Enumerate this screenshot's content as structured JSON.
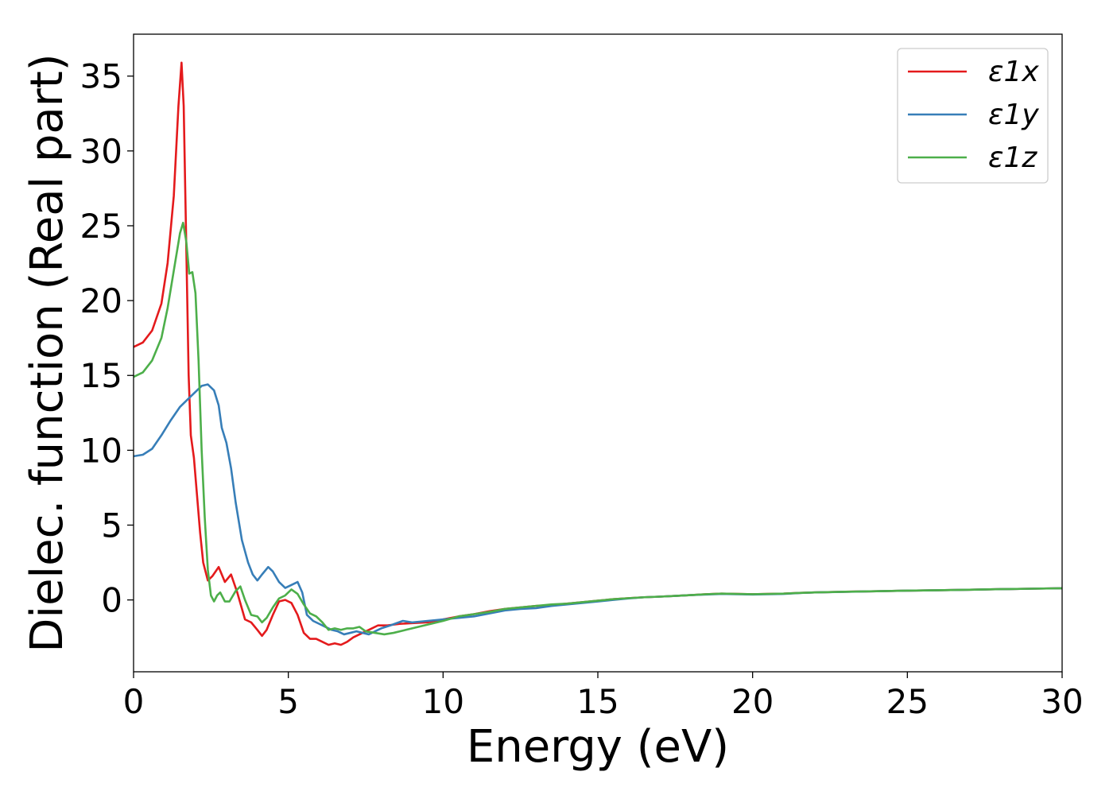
{
  "chart_data": {
    "type": "line",
    "title": "",
    "xlabel": "Energy (eV)",
    "ylabel": "Dielec. function (Real part)",
    "xlim": [
      0,
      30
    ],
    "ylim": [
      -4.8,
      37.8
    ],
    "xticks": [
      0,
      5,
      10,
      15,
      20,
      25,
      30
    ],
    "yticks": [
      0,
      5,
      10,
      15,
      20,
      25,
      30,
      35
    ],
    "grid": false,
    "legend_position": "top-right",
    "series": [
      {
        "name": "ε1x",
        "color": "#e41a1c",
        "points": [
          [
            0,
            16.9
          ],
          [
            0.3,
            17.2
          ],
          [
            0.6,
            18.0
          ],
          [
            0.9,
            19.8
          ],
          [
            1.1,
            22.5
          ],
          [
            1.3,
            27.0
          ],
          [
            1.45,
            33.0
          ],
          [
            1.55,
            35.9
          ],
          [
            1.62,
            33.0
          ],
          [
            1.7,
            24.0
          ],
          [
            1.78,
            15.0
          ],
          [
            1.85,
            11.0
          ],
          [
            1.95,
            9.5
          ],
          [
            2.05,
            7.0
          ],
          [
            2.15,
            4.5
          ],
          [
            2.25,
            2.5
          ],
          [
            2.4,
            1.3
          ],
          [
            2.55,
            1.6
          ],
          [
            2.75,
            2.2
          ],
          [
            2.95,
            1.2
          ],
          [
            3.15,
            1.7
          ],
          [
            3.35,
            0.5
          ],
          [
            3.6,
            -1.3
          ],
          [
            3.8,
            -1.5
          ],
          [
            4.0,
            -2.0
          ],
          [
            4.15,
            -2.4
          ],
          [
            4.3,
            -2.0
          ],
          [
            4.5,
            -1.0
          ],
          [
            4.7,
            -0.1
          ],
          [
            4.9,
            0.0
          ],
          [
            5.1,
            -0.2
          ],
          [
            5.3,
            -1.0
          ],
          [
            5.5,
            -2.2
          ],
          [
            5.7,
            -2.6
          ],
          [
            5.9,
            -2.6
          ],
          [
            6.1,
            -2.8
          ],
          [
            6.3,
            -3.0
          ],
          [
            6.5,
            -2.9
          ],
          [
            6.7,
            -3.0
          ],
          [
            6.9,
            -2.8
          ],
          [
            7.1,
            -2.5
          ],
          [
            7.3,
            -2.3
          ],
          [
            7.6,
            -2.0
          ],
          [
            7.9,
            -1.7
          ],
          [
            8.2,
            -1.7
          ],
          [
            8.6,
            -1.6
          ],
          [
            9.0,
            -1.55
          ],
          [
            9.5,
            -1.5
          ],
          [
            10.0,
            -1.3
          ],
          [
            10.5,
            -1.1
          ],
          [
            11.0,
            -0.95
          ],
          [
            11.5,
            -0.75
          ],
          [
            12.0,
            -0.6
          ],
          [
            12.5,
            -0.5
          ],
          [
            13.0,
            -0.4
          ],
          [
            13.5,
            -0.35
          ],
          [
            14.0,
            -0.25
          ],
          [
            14.5,
            -0.15
          ],
          [
            15.0,
            -0.05
          ],
          [
            15.5,
            0.05
          ],
          [
            16.0,
            0.12
          ],
          [
            16.5,
            0.18
          ],
          [
            17.0,
            0.22
          ],
          [
            17.5,
            0.27
          ],
          [
            18.0,
            0.32
          ],
          [
            18.5,
            0.38
          ],
          [
            19.0,
            0.42
          ],
          [
            19.5,
            0.4
          ],
          [
            20.0,
            0.38
          ],
          [
            20.5,
            0.4
          ],
          [
            21.0,
            0.42
          ],
          [
            21.5,
            0.47
          ],
          [
            22.0,
            0.5
          ],
          [
            23.0,
            0.55
          ],
          [
            24.0,
            0.58
          ],
          [
            25.0,
            0.62
          ],
          [
            26.0,
            0.65
          ],
          [
            27.0,
            0.68
          ],
          [
            28.0,
            0.72
          ],
          [
            29.0,
            0.75
          ],
          [
            30.0,
            0.78
          ]
        ]
      },
      {
        "name": "ε1y",
        "color": "#377eb8",
        "points": [
          [
            0,
            9.6
          ],
          [
            0.3,
            9.7
          ],
          [
            0.6,
            10.1
          ],
          [
            0.9,
            11.0
          ],
          [
            1.2,
            12.0
          ],
          [
            1.5,
            12.9
          ],
          [
            1.8,
            13.5
          ],
          [
            2.0,
            13.9
          ],
          [
            2.2,
            14.3
          ],
          [
            2.4,
            14.4
          ],
          [
            2.6,
            14.0
          ],
          [
            2.75,
            13.0
          ],
          [
            2.85,
            11.5
          ],
          [
            3.0,
            10.5
          ],
          [
            3.15,
            8.8
          ],
          [
            3.3,
            6.5
          ],
          [
            3.5,
            4.0
          ],
          [
            3.7,
            2.5
          ],
          [
            3.85,
            1.7
          ],
          [
            4.0,
            1.3
          ],
          [
            4.15,
            1.7
          ],
          [
            4.35,
            2.2
          ],
          [
            4.5,
            1.9
          ],
          [
            4.7,
            1.2
          ],
          [
            4.9,
            0.8
          ],
          [
            5.1,
            1.0
          ],
          [
            5.3,
            1.2
          ],
          [
            5.45,
            0.5
          ],
          [
            5.6,
            -1.0
          ],
          [
            5.8,
            -1.4
          ],
          [
            6.0,
            -1.6
          ],
          [
            6.2,
            -1.8
          ],
          [
            6.4,
            -2.0
          ],
          [
            6.6,
            -2.1
          ],
          [
            6.8,
            -2.3
          ],
          [
            7.0,
            -2.2
          ],
          [
            7.2,
            -2.1
          ],
          [
            7.4,
            -2.2
          ],
          [
            7.6,
            -2.3
          ],
          [
            7.8,
            -2.1
          ],
          [
            8.0,
            -1.9
          ],
          [
            8.3,
            -1.7
          ],
          [
            8.7,
            -1.4
          ],
          [
            9.0,
            -1.5
          ],
          [
            9.5,
            -1.4
          ],
          [
            10.0,
            -1.3
          ],
          [
            10.5,
            -1.2
          ],
          [
            11.0,
            -1.1
          ],
          [
            11.5,
            -0.9
          ],
          [
            12.0,
            -0.7
          ],
          [
            12.5,
            -0.6
          ],
          [
            13.0,
            -0.55
          ],
          [
            13.5,
            -0.4
          ],
          [
            14.0,
            -0.3
          ],
          [
            14.5,
            -0.2
          ],
          [
            15.0,
            -0.1
          ],
          [
            15.5,
            0.0
          ],
          [
            16.0,
            0.1
          ],
          [
            16.5,
            0.18
          ],
          [
            17.0,
            0.22
          ],
          [
            17.5,
            0.27
          ],
          [
            18.0,
            0.32
          ],
          [
            18.5,
            0.36
          ],
          [
            19.0,
            0.4
          ],
          [
            19.5,
            0.38
          ],
          [
            20.0,
            0.36
          ],
          [
            20.5,
            0.38
          ],
          [
            21.0,
            0.4
          ],
          [
            21.5,
            0.46
          ],
          [
            22.0,
            0.5
          ],
          [
            23.0,
            0.54
          ],
          [
            24.0,
            0.58
          ],
          [
            25.0,
            0.62
          ],
          [
            26.0,
            0.65
          ],
          [
            27.0,
            0.68
          ],
          [
            28.0,
            0.72
          ],
          [
            29.0,
            0.75
          ],
          [
            30.0,
            0.78
          ]
        ]
      },
      {
        "name": "ε1z",
        "color": "#4daf4a",
        "points": [
          [
            0,
            14.9
          ],
          [
            0.3,
            15.2
          ],
          [
            0.6,
            16.0
          ],
          [
            0.9,
            17.5
          ],
          [
            1.1,
            19.5
          ],
          [
            1.3,
            22.0
          ],
          [
            1.5,
            24.5
          ],
          [
            1.6,
            25.2
          ],
          [
            1.7,
            24.0
          ],
          [
            1.8,
            21.8
          ],
          [
            1.9,
            21.9
          ],
          [
            2.0,
            20.5
          ],
          [
            2.1,
            16.0
          ],
          [
            2.2,
            10.0
          ],
          [
            2.3,
            5.5
          ],
          [
            2.4,
            2.0
          ],
          [
            2.5,
            0.3
          ],
          [
            2.6,
            -0.1
          ],
          [
            2.7,
            0.3
          ],
          [
            2.8,
            0.5
          ],
          [
            2.95,
            -0.1
          ],
          [
            3.1,
            -0.1
          ],
          [
            3.3,
            0.6
          ],
          [
            3.45,
            0.9
          ],
          [
            3.6,
            0.0
          ],
          [
            3.8,
            -1.0
          ],
          [
            4.0,
            -1.1
          ],
          [
            4.15,
            -1.5
          ],
          [
            4.3,
            -1.2
          ],
          [
            4.5,
            -0.5
          ],
          [
            4.7,
            0.1
          ],
          [
            4.9,
            0.3
          ],
          [
            5.1,
            0.7
          ],
          [
            5.3,
            0.4
          ],
          [
            5.5,
            -0.3
          ],
          [
            5.7,
            -0.9
          ],
          [
            5.9,
            -1.1
          ],
          [
            6.1,
            -1.5
          ],
          [
            6.3,
            -2.0
          ],
          [
            6.5,
            -1.9
          ],
          [
            6.7,
            -2.0
          ],
          [
            6.9,
            -1.9
          ],
          [
            7.1,
            -1.9
          ],
          [
            7.3,
            -1.8
          ],
          [
            7.5,
            -2.1
          ],
          [
            7.8,
            -2.2
          ],
          [
            8.1,
            -2.3
          ],
          [
            8.4,
            -2.2
          ],
          [
            8.8,
            -2.0
          ],
          [
            9.2,
            -1.8
          ],
          [
            9.6,
            -1.6
          ],
          [
            10.0,
            -1.4
          ],
          [
            10.5,
            -1.1
          ],
          [
            11.0,
            -0.95
          ],
          [
            11.5,
            -0.8
          ],
          [
            12.0,
            -0.6
          ],
          [
            12.5,
            -0.5
          ],
          [
            13.0,
            -0.4
          ],
          [
            13.5,
            -0.3
          ],
          [
            14.0,
            -0.25
          ],
          [
            14.5,
            -0.15
          ],
          [
            15.0,
            -0.05
          ],
          [
            15.5,
            0.05
          ],
          [
            16.0,
            0.12
          ],
          [
            16.5,
            0.18
          ],
          [
            17.0,
            0.22
          ],
          [
            17.5,
            0.27
          ],
          [
            18.0,
            0.32
          ],
          [
            18.5,
            0.38
          ],
          [
            19.0,
            0.42
          ],
          [
            19.5,
            0.4
          ],
          [
            20.0,
            0.38
          ],
          [
            20.5,
            0.4
          ],
          [
            21.0,
            0.42
          ],
          [
            21.5,
            0.47
          ],
          [
            22.0,
            0.5
          ],
          [
            23.0,
            0.55
          ],
          [
            24.0,
            0.58
          ],
          [
            25.0,
            0.62
          ],
          [
            26.0,
            0.65
          ],
          [
            27.0,
            0.68
          ],
          [
            28.0,
            0.72
          ],
          [
            29.0,
            0.75
          ],
          [
            30.0,
            0.78
          ]
        ]
      }
    ]
  }
}
